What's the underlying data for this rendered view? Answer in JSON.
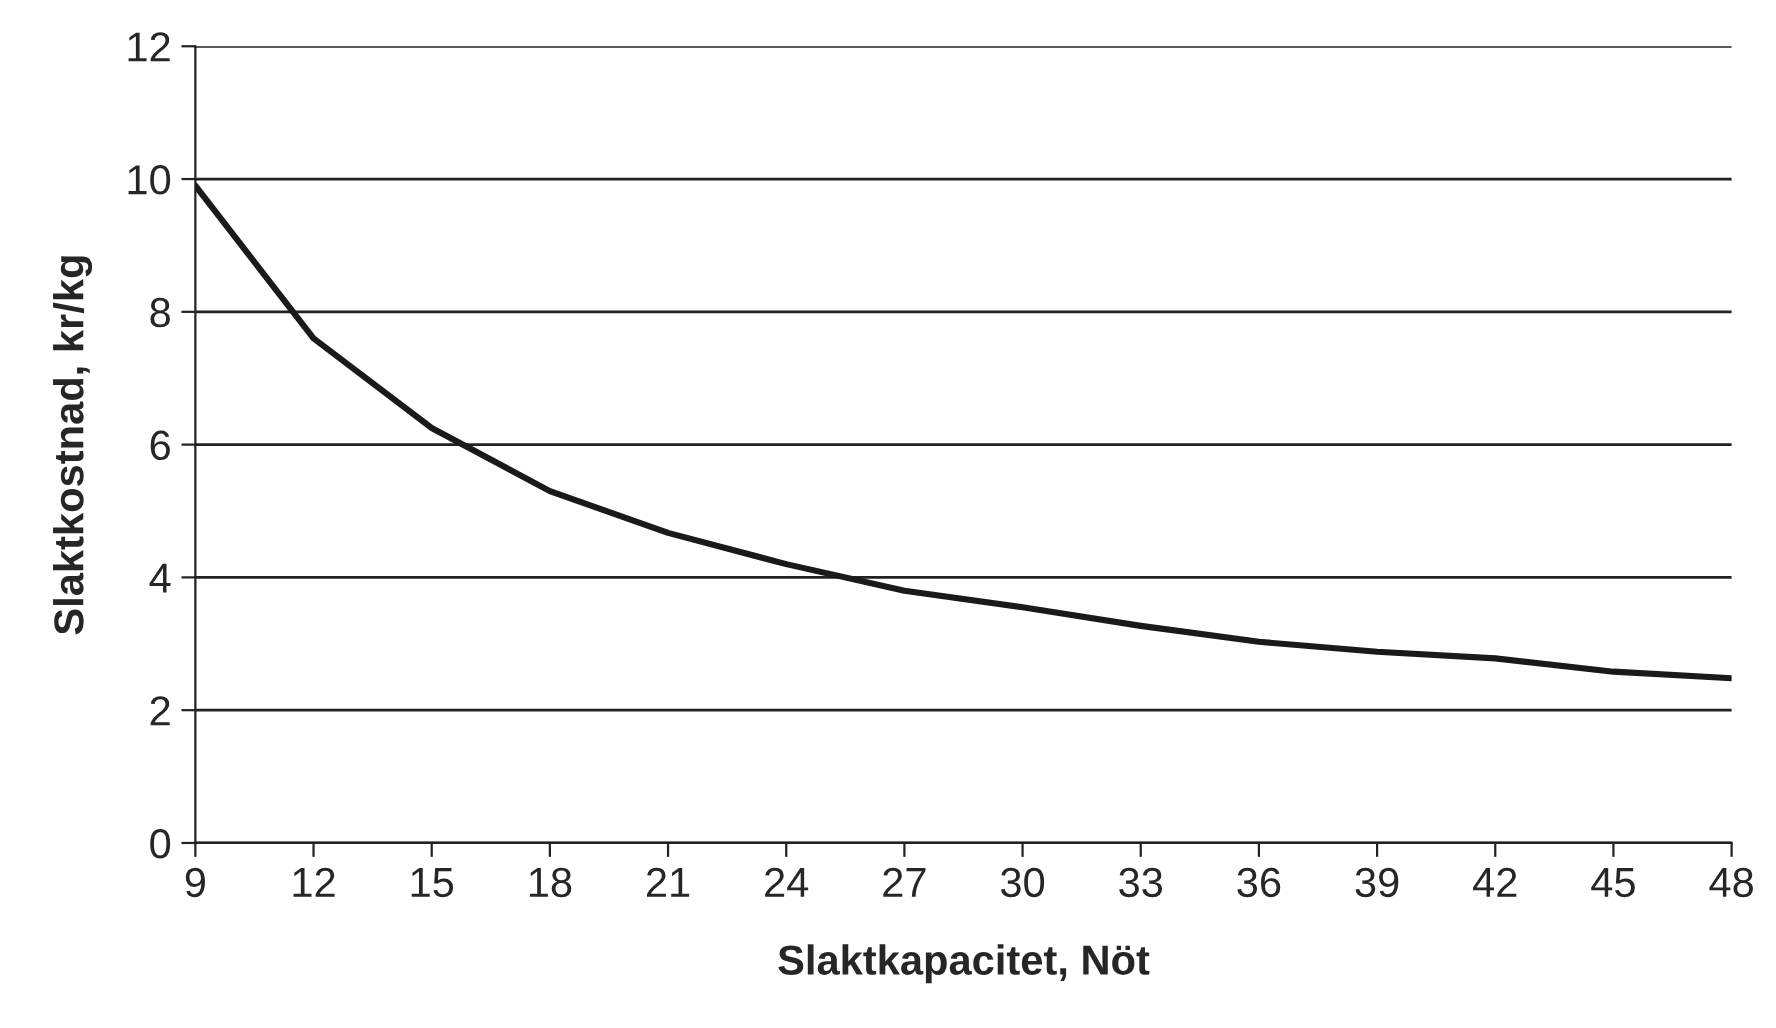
{
  "chart_data": {
    "type": "line",
    "xlabel": "Slaktkapacitet, Nöt",
    "ylabel": "Slaktkostnad, kr/kg",
    "categories": [
      "9",
      "12",
      "15",
      "18",
      "21",
      "24",
      "27",
      "30",
      "33",
      "36",
      "39",
      "42",
      "45",
      "48"
    ],
    "series": [
      {
        "color": "#1a1a1a",
        "values": [
          9.9,
          7.6,
          6.25,
          5.3,
          4.67,
          4.2,
          3.8,
          3.55,
          3.27,
          3.03,
          2.88,
          2.78,
          2.58,
          2.48
        ]
      }
    ],
    "ylim": [
      0,
      12
    ],
    "yticks": [
      0,
      2,
      4,
      6,
      8,
      10,
      12
    ],
    "grid": "y",
    "marker": "none",
    "line_style": "solid"
  }
}
